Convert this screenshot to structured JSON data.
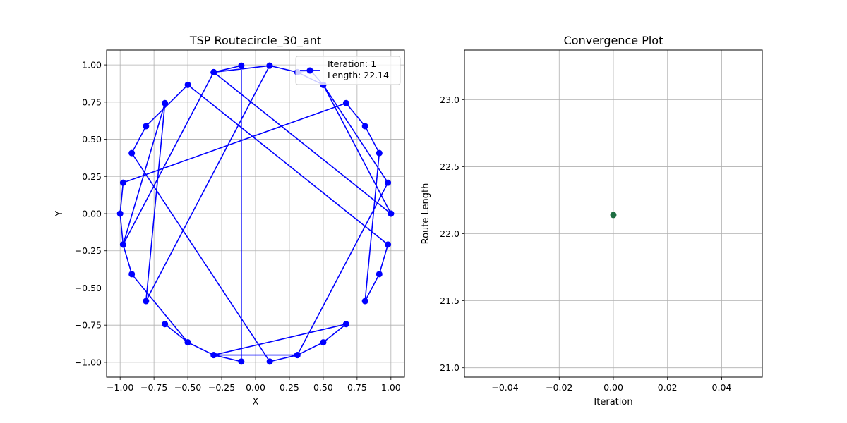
{
  "chart_data": [
    {
      "type": "line",
      "title": "TSP Routecircle_30_ant",
      "xlabel": "X",
      "ylabel": "Y",
      "xlim": [
        -1.1,
        1.1
      ],
      "ylim": [
        -1.1,
        1.1
      ],
      "xticks": [
        -1.0,
        -0.75,
        -0.5,
        -0.25,
        0.0,
        0.25,
        0.5,
        0.75,
        1.0
      ],
      "xtick_labels": [
        "−1.00",
        "−0.75",
        "−0.50",
        "−0.25",
        "0.00",
        "0.25",
        "0.50",
        "0.75",
        "1.00"
      ],
      "yticks": [
        -1.0,
        -0.75,
        -0.5,
        -0.25,
        0.0,
        0.25,
        0.5,
        0.75,
        1.0
      ],
      "ytick_labels": [
        "−1.00",
        "−0.75",
        "−0.50",
        "−0.25",
        "0.00",
        "0.25",
        "0.50",
        "0.75",
        "1.00"
      ],
      "grid": true,
      "legend": {
        "position": "top-right",
        "lines": [
          "Iteration: 1",
          "Length: 22.14"
        ]
      },
      "color": "#0000ff",
      "route": [
        [
          1.0,
          0.0
        ],
        [
          -0.309,
          0.951
        ],
        [
          -0.978,
          -0.208
        ],
        [
          -0.669,
          0.743
        ],
        [
          -0.809,
          -0.588
        ],
        [
          0.104,
          0.995
        ],
        [
          0.309,
          0.951
        ],
        [
          0.5,
          0.866
        ],
        [
          0.978,
          0.208
        ],
        [
          0.309,
          -0.951
        ],
        [
          0.105,
          -0.995
        ],
        [
          -0.914,
          0.407
        ],
        [
          -0.809,
          0.588
        ],
        [
          -0.5,
          0.866
        ],
        [
          0.978,
          -0.208
        ],
        [
          0.914,
          -0.407
        ],
        [
          0.809,
          -0.588
        ],
        [
          0.914,
          0.407
        ],
        [
          0.809,
          0.588
        ],
        [
          0.669,
          0.743
        ],
        [
          -0.978,
          0.208
        ],
        [
          -1.0,
          0.0
        ],
        [
          -0.978,
          -0.208
        ],
        [
          -0.914,
          -0.407
        ],
        [
          -0.5,
          -0.866
        ],
        [
          -0.669,
          -0.743
        ],
        [
          -0.5,
          -0.866
        ],
        [
          -0.309,
          -0.951
        ],
        [
          0.669,
          -0.743
        ],
        [
          0.5,
          -0.866
        ],
        [
          0.309,
          -0.951
        ],
        [
          -0.309,
          -0.951
        ],
        [
          -0.105,
          -0.995
        ],
        [
          -0.105,
          0.995
        ],
        [
          -0.309,
          0.951
        ],
        [
          0.104,
          0.995
        ],
        [
          0.309,
          0.951
        ],
        [
          0.407,
          0.962
        ],
        [
          0.5,
          0.866
        ],
        [
          1.0,
          0.0
        ]
      ]
    },
    {
      "type": "scatter",
      "title": "Convergence Plot",
      "xlabel": "Iteration",
      "ylabel": "Route Length",
      "xlim": [
        -0.055,
        0.055
      ],
      "ylim": [
        20.93,
        23.37
      ],
      "xticks": [
        -0.04,
        -0.02,
        0.0,
        0.02,
        0.04
      ],
      "xtick_labels": [
        "−0.04",
        "−0.02",
        "0.00",
        "0.02",
        "0.04"
      ],
      "yticks": [
        21.0,
        21.5,
        22.0,
        22.5,
        23.0
      ],
      "ytick_labels": [
        "21.0",
        "21.5",
        "22.0",
        "22.5",
        "23.0"
      ],
      "grid": true,
      "color": "#1e6e42",
      "x": [
        0
      ],
      "y": [
        22.14
      ]
    }
  ]
}
